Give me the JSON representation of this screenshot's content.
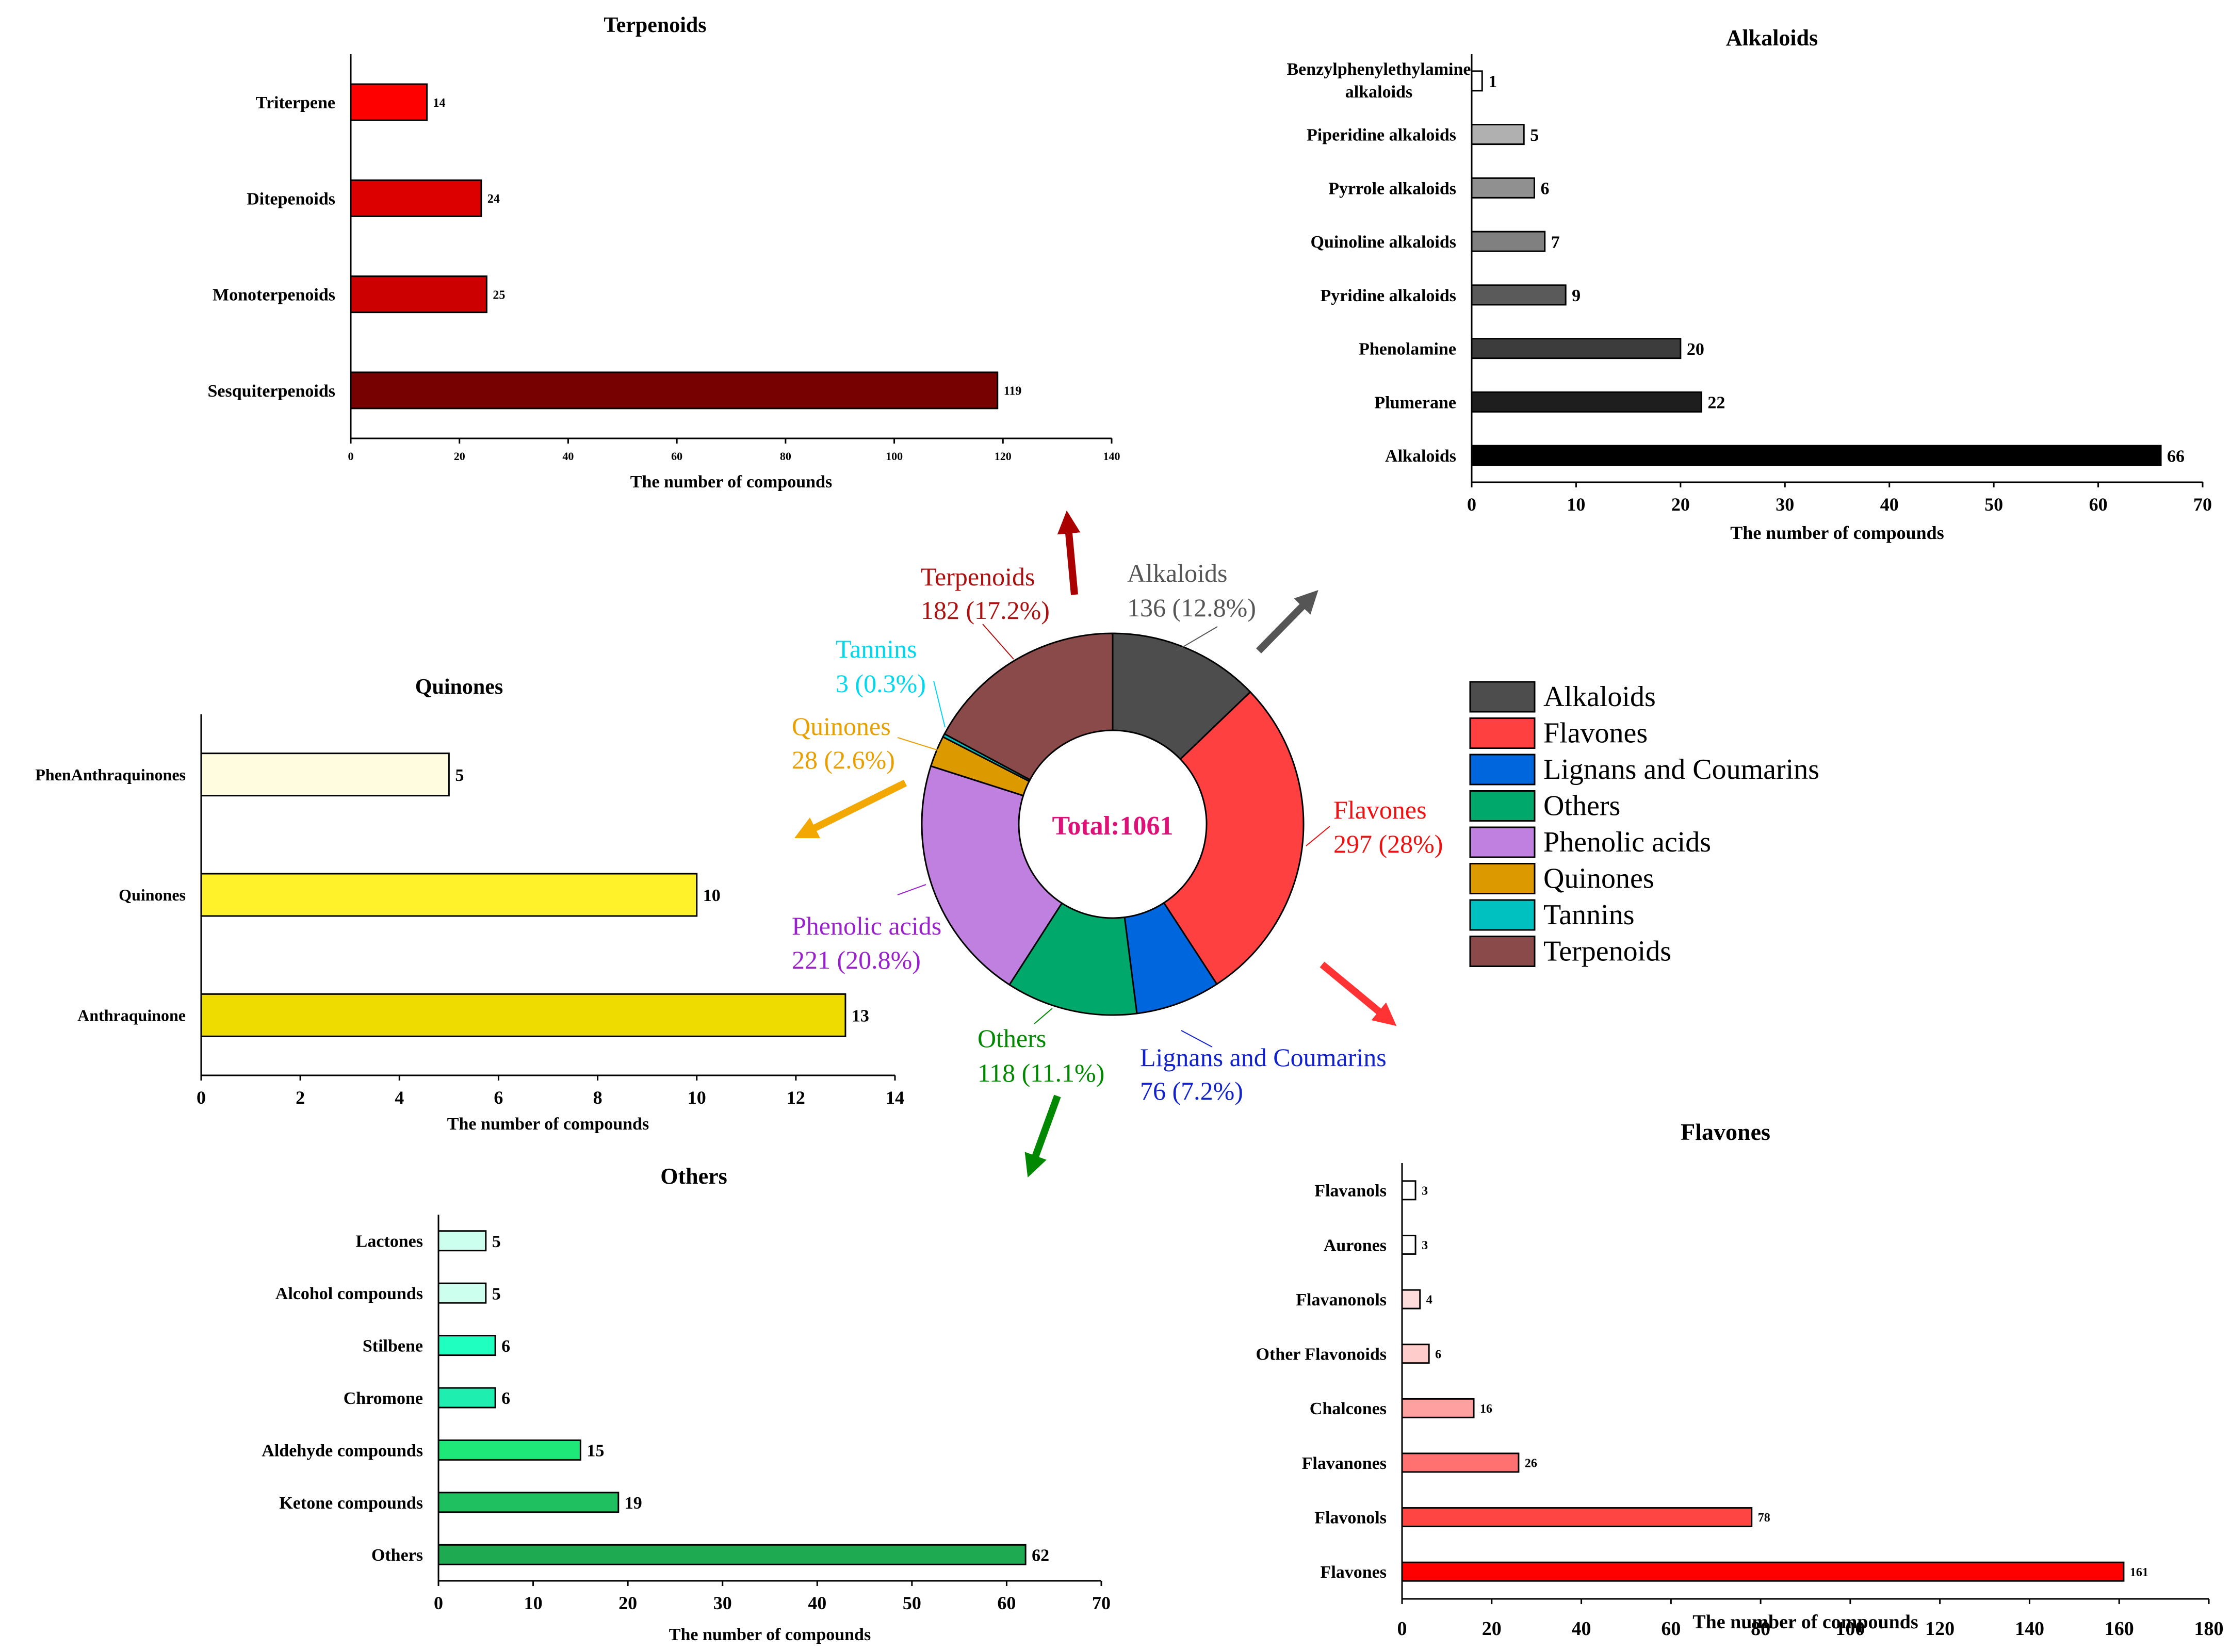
{
  "colors": {
    "alkaloids": "#4d4d4d",
    "flavones": "#ff4040",
    "lignans": "#0066dd",
    "others": "#00a86b",
    "phenolic": "#c080e0",
    "quinones": "#dd9a00",
    "tannins": "#00c0c0",
    "terpenoids": "#8b4a4a"
  },
  "chart_data": [
    {
      "id": "donut",
      "type": "pie",
      "center_label": "Total:1061",
      "slices": [
        {
          "key": "alkaloids",
          "name": "Alkaloids",
          "value": 136,
          "value_label": "136 (12.8%)",
          "label_color": "#555555",
          "color": "#4d4d4d"
        },
        {
          "key": "flavones",
          "name": "Flavones",
          "value": 297,
          "value_label": "297 (28%)",
          "label_color": "#ee1111",
          "color": "#ff4040"
        },
        {
          "key": "lignans",
          "name": "Lignans and Coumarins",
          "value": 76,
          "value_label": "76 (7.2%)",
          "label_color": "#1122cc",
          "color": "#0066dd"
        },
        {
          "key": "others",
          "name": "Others",
          "value": 118,
          "value_label": "118 (11.1%)",
          "label_color": "#008800",
          "color": "#00a86b"
        },
        {
          "key": "phenolic",
          "name": "Phenolic acids",
          "value": 221,
          "value_label": "221 (20.8%)",
          "label_color": "#9922cc",
          "color": "#c080e0"
        },
        {
          "key": "quinones",
          "name": "Quinones",
          "value": 28,
          "value_label": "28 (2.6%)",
          "label_color": "#e8a000",
          "color": "#dd9a00"
        },
        {
          "key": "tannins",
          "name": "Tannins",
          "value": 3,
          "value_label": "3 (0.3%)",
          "label_color": "#00d8ee",
          "color": "#00c0c0"
        },
        {
          "key": "terpenoids",
          "name": "Terpenoids",
          "value": 182,
          "value_label": "182 (17.2%)",
          "label_color": "#aa1111",
          "color": "#8b4a4a"
        }
      ],
      "legend": [
        "Alkaloids",
        "Flavones",
        "Lignans and Coumarins",
        "Others",
        "Phenolic acids",
        "Quinones",
        "Tannins",
        "Terpenoids"
      ]
    },
    {
      "id": "terpenoids",
      "type": "bar",
      "orientation": "horizontal",
      "title": "Terpenoids",
      "xlabel": "The number of compounds",
      "xlim": [
        0,
        140
      ],
      "ticks": [
        0,
        20,
        40,
        60,
        80,
        100,
        120,
        140
      ],
      "categories": [
        "Triterpene",
        "Ditepenoids",
        "Monoterpenoids",
        "Sesquiterpenoids"
      ],
      "values": [
        14,
        24,
        25,
        119
      ],
      "colors": [
        "#ff0000",
        "#dd0000",
        "#cc0000",
        "#770000"
      ]
    },
    {
      "id": "alkaloids",
      "type": "bar",
      "orientation": "horizontal",
      "title": "Alkaloids",
      "xlabel": "The number of compounds",
      "xlim": [
        0,
        70
      ],
      "ticks": [
        0,
        10,
        20,
        30,
        40,
        50,
        60,
        70
      ],
      "categories": [
        [
          "Benzylphenylethylamine",
          "alkaloids"
        ],
        "Piperidine alkaloids",
        "Pyrrole alkaloids",
        "Quinoline alkaloids",
        "Pyridine alkaloids",
        "Phenolamine",
        "Plumerane",
        "Alkaloids"
      ],
      "values": [
        1,
        5,
        6,
        7,
        9,
        20,
        22,
        66
      ],
      "colors": [
        "#ffffff",
        "#b0b0b0",
        "#909090",
        "#808080",
        "#5a5a5a",
        "#3c3c3c",
        "#1e1e1e",
        "#000000"
      ]
    },
    {
      "id": "quinones",
      "type": "bar",
      "orientation": "horizontal",
      "title": "Quinones",
      "xlabel": "The number of compounds",
      "xlim": [
        0,
        14
      ],
      "ticks": [
        0,
        2,
        4,
        6,
        8,
        10,
        12,
        14
      ],
      "categories": [
        "PhenAnthraquinones",
        "Quinones",
        "Anthraquinone"
      ],
      "values": [
        5,
        10,
        13
      ],
      "colors": [
        "#fffce0",
        "#fff22a",
        "#eedb00"
      ]
    },
    {
      "id": "others",
      "type": "bar",
      "orientation": "horizontal",
      "title": "Others",
      "xlabel": "The number of compounds",
      "xlim": [
        0,
        70
      ],
      "ticks": [
        0,
        10,
        20,
        30,
        40,
        50,
        60,
        70
      ],
      "categories": [
        "Lactones",
        "Alcohol compounds",
        "Stilbene",
        "Chromone",
        "Aldehyde compounds",
        "Ketone compounds",
        "Others"
      ],
      "values": [
        5,
        5,
        6,
        6,
        15,
        19,
        62
      ],
      "colors": [
        "#ccffee",
        "#ccffee",
        "#1effc0",
        "#1eeeb0",
        "#1ee878",
        "#1ec060",
        "#1eaa50"
      ]
    },
    {
      "id": "flavones",
      "type": "bar",
      "orientation": "horizontal",
      "title": "Flavones",
      "xlabel": "The number of compounds",
      "xlim": [
        0,
        180
      ],
      "ticks": [
        0,
        20,
        40,
        60,
        80,
        100,
        120,
        140,
        160,
        180
      ],
      "categories": [
        "Flavanols",
        "Aurones",
        "Flavanonols",
        "Other Flavonoids",
        "Chalcones",
        "Flavanones",
        "Flavonols",
        "Flavones"
      ],
      "values": [
        3,
        3,
        4,
        6,
        16,
        26,
        78,
        161
      ],
      "colors": [
        "#ffffff",
        "#ffffff",
        "#ffdcdc",
        "#ffcccc",
        "#ffa0a0",
        "#ff7070",
        "#ff4444",
        "#ff0000"
      ]
    }
  ]
}
